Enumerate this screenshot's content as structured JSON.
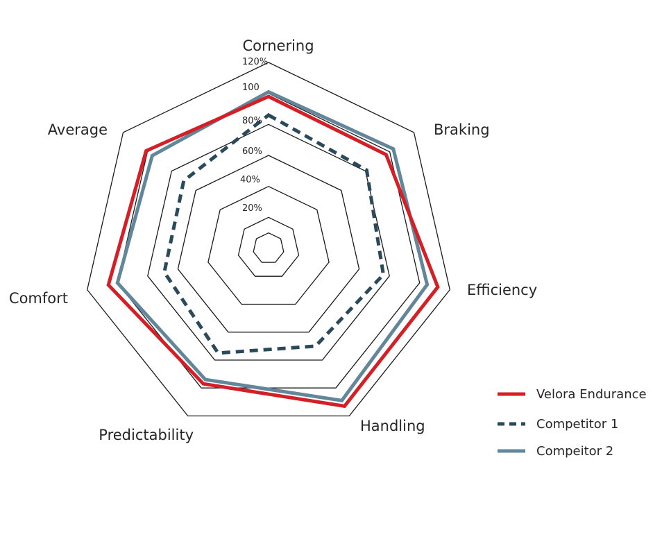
{
  "chart_data": {
    "type": "radar",
    "categories": [
      "Cornering",
      "Braking",
      "Efficiency",
      "Handling",
      "Predictability",
      "Comfort",
      "Average"
    ],
    "radial_ticks": [
      "20%",
      "40%",
      "60%",
      "80%",
      "100",
      "120%"
    ],
    "radial_range": [
      0,
      120
    ],
    "grid": true,
    "legend_position": "right",
    "series": [
      {
        "name": "Velora Endurance",
        "values": [
          98,
          97,
          112,
          113,
          97,
          106,
          101
        ],
        "color": "#d41f26",
        "style": "solid"
      },
      {
        "name": "Competitor 1",
        "values": [
          86,
          81,
          76,
          70,
          75,
          69,
          70
        ],
        "color": "#2a4a5a",
        "style": "dashed"
      },
      {
        "name": "Compeitor 2",
        "values": [
          101,
          103,
          105,
          109,
          94,
          100,
          96
        ],
        "color": "#62879a",
        "style": "solid"
      }
    ]
  }
}
